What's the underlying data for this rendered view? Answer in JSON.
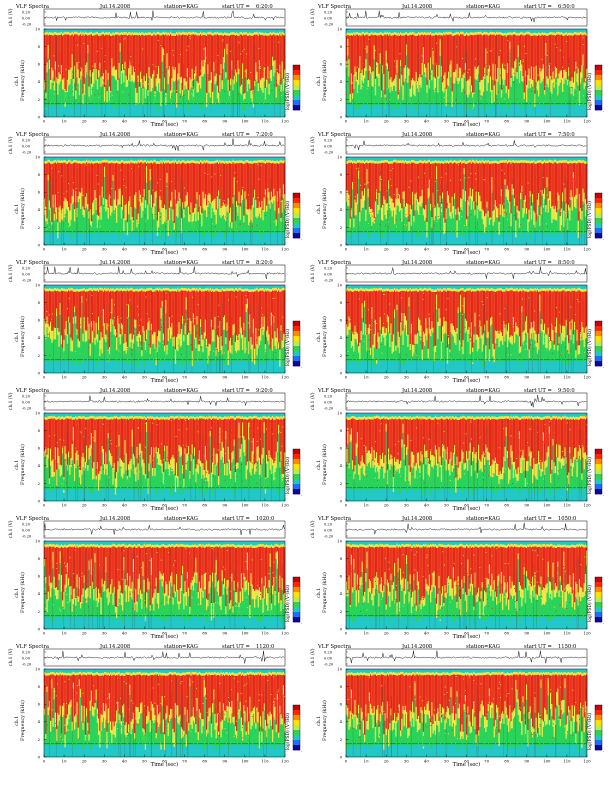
{
  "document": {
    "header": {
      "title": "VLF Spectra",
      "date": "Jul.14.2008",
      "station": "station=KAG",
      "start_prefix": "start UT ="
    },
    "labels": {
      "ch1_axis": "ch.1 (V)",
      "freq_axis": "Frequency (kHz)",
      "freq_prefix": "ch.1",
      "time_axis": "Time (sec)",
      "colorbar_axis": "log(PSD) (V²/Hz)"
    },
    "waveform_ticks": [
      "0.20",
      "0.00",
      "-0.20"
    ],
    "freq_ticks": [
      "0",
      "2",
      "4",
      "6",
      "8",
      "10"
    ],
    "time_ticks": [
      "0",
      "10",
      "20",
      "30",
      "40",
      "50",
      "60",
      "70",
      "80",
      "90",
      "100",
      "110",
      "120"
    ],
    "colorbar_ticks": [
      "",
      "-"
    ],
    "colors": {
      "spectrum_high": "#e8271c",
      "spectrum_mid": "#f1e84a",
      "spectrum_low": "#2ad45a",
      "spectrum_floor": "#22c8c8",
      "trace": "#000000",
      "background": "#ffffff"
    }
  },
  "chart_data": [
    {
      "type": "heatmap",
      "start_ut": "6:20:0",
      "xlim": [
        0,
        120
      ],
      "ylim": [
        0,
        10
      ],
      "xlabel": "Time (sec)",
      "ylabel": "Frequency (kHz)"
    },
    {
      "type": "heatmap",
      "start_ut": "6:50:0",
      "xlim": [
        0,
        120
      ],
      "ylim": [
        0,
        10
      ],
      "xlabel": "Time (sec)",
      "ylabel": "Frequency (kHz)"
    },
    {
      "type": "heatmap",
      "start_ut": "7:20:0",
      "xlim": [
        0,
        120
      ],
      "ylim": [
        0,
        10
      ],
      "xlabel": "Time (sec)",
      "ylabel": "Frequency (kHz)"
    },
    {
      "type": "heatmap",
      "start_ut": "7:50:0",
      "xlim": [
        0,
        120
      ],
      "ylim": [
        0,
        10
      ],
      "xlabel": "Time (sec)",
      "ylabel": "Frequency (kHz)"
    },
    {
      "type": "heatmap",
      "start_ut": "8:20:0",
      "xlim": [
        0,
        120
      ],
      "ylim": [
        0,
        10
      ],
      "xlabel": "Time (sec)",
      "ylabel": "Frequency (kHz)"
    },
    {
      "type": "heatmap",
      "start_ut": "8:50:0",
      "xlim": [
        0,
        120
      ],
      "ylim": [
        0,
        10
      ],
      "xlabel": "Time (sec)",
      "ylabel": "Frequency (kHz)"
    },
    {
      "type": "heatmap",
      "start_ut": "9:20:0",
      "xlim": [
        0,
        120
      ],
      "ylim": [
        0,
        10
      ],
      "xlabel": "Time (sec)",
      "ylabel": "Frequency (kHz)"
    },
    {
      "type": "heatmap",
      "start_ut": "9:50:0",
      "xlim": [
        0,
        120
      ],
      "ylim": [
        0,
        10
      ],
      "xlabel": "Time (sec)",
      "ylabel": "Frequency (kHz)"
    },
    {
      "type": "heatmap",
      "start_ut": "1020:0",
      "xlim": [
        0,
        120
      ],
      "ylim": [
        0,
        10
      ],
      "xlabel": "Time (sec)",
      "ylabel": "Frequency (kHz)"
    },
    {
      "type": "heatmap",
      "start_ut": "1050:0",
      "xlim": [
        0,
        120
      ],
      "ylim": [
        0,
        10
      ],
      "xlabel": "Time (sec)",
      "ylabel": "Frequency (kHz)"
    },
    {
      "type": "heatmap",
      "start_ut": "1120:0",
      "xlim": [
        0,
        120
      ],
      "ylim": [
        0,
        10
      ],
      "xlabel": "Time (sec)",
      "ylabel": "Frequency (kHz)"
    },
    {
      "type": "heatmap",
      "start_ut": "1150:0",
      "xlim": [
        0,
        120
      ],
      "ylim": [
        0,
        10
      ],
      "xlabel": "Time (sec)",
      "ylabel": "Frequency (kHz)"
    }
  ]
}
